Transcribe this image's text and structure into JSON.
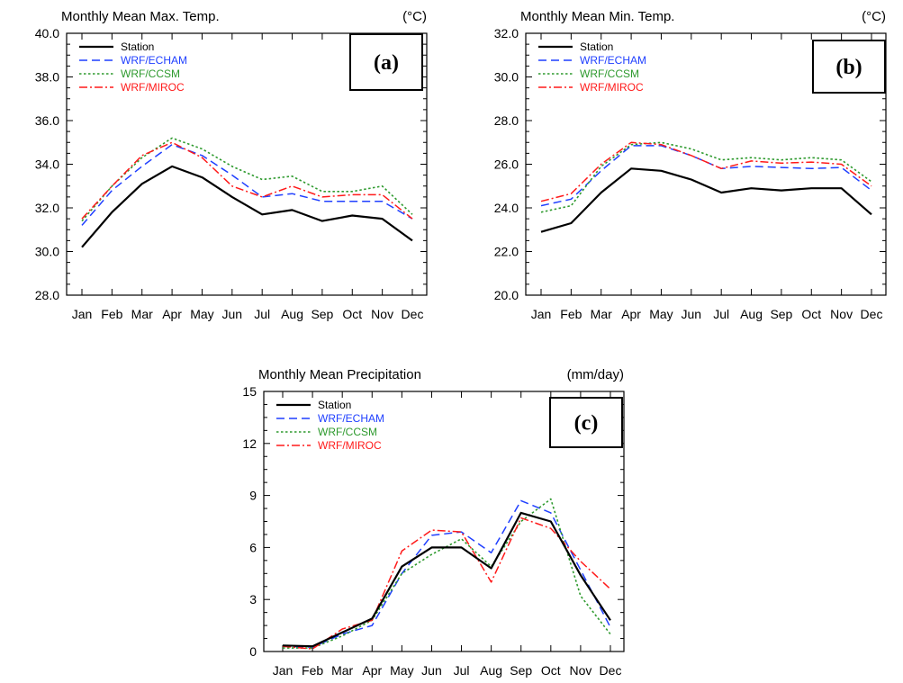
{
  "styles": {
    "Station": {
      "color": "#000000",
      "dash": "",
      "width": 2.2
    },
    "WRF/ECHAM": {
      "color": "#1f3fff",
      "dash": "9,5",
      "width": 1.5
    },
    "WRF/CCSM": {
      "color": "#2e9a2e",
      "dash": "2.5,2.5",
      "width": 1.6
    },
    "WRF/MIROC": {
      "color": "#ff1a1a",
      "dash": "9,3,2,3",
      "width": 1.5
    }
  },
  "chart_data": [
    {
      "type": "line",
      "title": "Monthly Mean Max. Temp.",
      "unit_label": "(°C)",
      "panel_label": "(a)",
      "categories": [
        "Jan",
        "Feb",
        "Mar",
        "Apr",
        "May",
        "Jun",
        "Jul",
        "Aug",
        "Sep",
        "Oct",
        "Nov",
        "Dec"
      ],
      "ylim": [
        28.0,
        40.0
      ],
      "yticks": [
        "28.0",
        "30.0",
        "32.0",
        "34.0",
        "36.0",
        "38.0",
        "40.0"
      ],
      "legend_position": "top-left",
      "series": [
        {
          "name": "Station",
          "values": [
            30.2,
            31.8,
            33.1,
            33.9,
            33.4,
            32.5,
            31.7,
            31.9,
            31.4,
            31.65,
            31.5,
            30.5
          ]
        },
        {
          "name": "WRF/ECHAM",
          "values": [
            31.2,
            32.8,
            33.9,
            34.9,
            34.4,
            33.5,
            32.5,
            32.65,
            32.3,
            32.3,
            32.3,
            31.5
          ]
        },
        {
          "name": "WRF/CCSM",
          "values": [
            31.4,
            33.0,
            34.3,
            35.2,
            34.7,
            33.9,
            33.3,
            33.45,
            32.75,
            32.75,
            33.0,
            31.7
          ]
        },
        {
          "name": "WRF/MIROC",
          "values": [
            31.5,
            33.0,
            34.4,
            35.0,
            34.3,
            33.0,
            32.5,
            33.0,
            32.5,
            32.6,
            32.6,
            31.5
          ]
        }
      ]
    },
    {
      "type": "line",
      "title": "Monthly Mean Min. Temp.",
      "unit_label": "(°C)",
      "panel_label": "(b)",
      "categories": [
        "Jan",
        "Feb",
        "Mar",
        "Apr",
        "May",
        "Jun",
        "Jul",
        "Aug",
        "Sep",
        "Oct",
        "Nov",
        "Dec"
      ],
      "ylim": [
        20.0,
        32.0
      ],
      "yticks": [
        "20.0",
        "22.0",
        "24.0",
        "26.0",
        "28.0",
        "30.0",
        "32.0"
      ],
      "legend_position": "top-left",
      "series": [
        {
          "name": "Station",
          "values": [
            22.9,
            23.3,
            24.7,
            25.8,
            25.7,
            25.3,
            24.7,
            24.9,
            24.8,
            24.9,
            24.9,
            23.7
          ]
        },
        {
          "name": "WRF/ECHAM",
          "values": [
            24.1,
            24.4,
            25.7,
            26.85,
            26.85,
            26.4,
            25.8,
            25.9,
            25.85,
            25.8,
            25.85,
            24.8
          ]
        },
        {
          "name": "WRF/CCSM",
          "values": [
            23.8,
            24.1,
            25.9,
            26.9,
            27.0,
            26.7,
            26.2,
            26.3,
            26.2,
            26.3,
            26.2,
            25.2
          ]
        },
        {
          "name": "WRF/MIROC",
          "values": [
            24.3,
            24.65,
            26.0,
            27.0,
            26.9,
            26.4,
            25.8,
            26.15,
            26.05,
            26.1,
            26.0,
            25.0
          ]
        }
      ]
    },
    {
      "type": "line",
      "title": "Monthly Mean Precipitation",
      "unit_label": "(mm/day)",
      "panel_label": "(c)",
      "categories": [
        "Jan",
        "Feb",
        "Mar",
        "Apr",
        "May",
        "Jun",
        "Jul",
        "Aug",
        "Sep",
        "Oct",
        "Nov",
        "Dec"
      ],
      "ylim": [
        0,
        15
      ],
      "yticks": [
        "0",
        "3",
        "6",
        "9",
        "12",
        "15"
      ],
      "legend_position": "top-left",
      "series": [
        {
          "name": "Station",
          "values": [
            0.35,
            0.3,
            1.1,
            1.9,
            4.9,
            6.0,
            6.0,
            4.8,
            8.0,
            7.5,
            4.4,
            1.8
          ]
        },
        {
          "name": "WRF/ECHAM",
          "values": [
            0.3,
            0.25,
            1.0,
            1.5,
            4.5,
            6.7,
            6.9,
            5.7,
            8.7,
            8.0,
            4.7,
            1.4
          ]
        },
        {
          "name": "WRF/CCSM",
          "values": [
            0.2,
            0.2,
            0.9,
            1.8,
            4.5,
            5.6,
            6.5,
            4.9,
            7.5,
            8.8,
            3.2,
            1.0
          ]
        },
        {
          "name": "WRF/MIROC",
          "values": [
            0.3,
            0.15,
            1.3,
            1.8,
            5.8,
            7.0,
            6.9,
            4.0,
            7.7,
            7.1,
            5.2,
            3.6
          ]
        }
      ]
    }
  ]
}
